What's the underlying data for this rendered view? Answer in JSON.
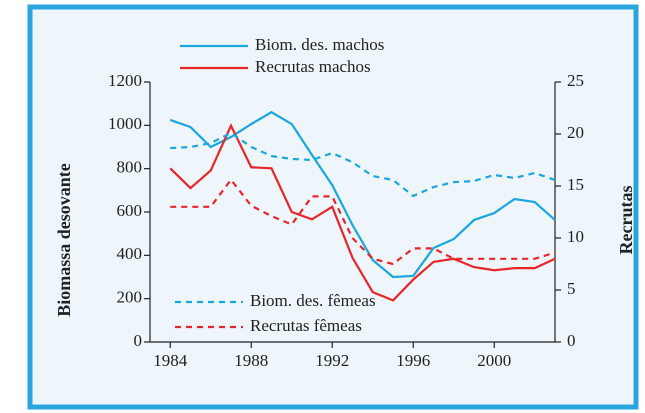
{
  "chart_data": {
    "type": "line",
    "y_label": "Biomassa desovante",
    "y2_label": "Recrutas",
    "x": [
      1984,
      1985,
      1986,
      1987,
      1988,
      1989,
      1990,
      1991,
      1992,
      1993,
      1994,
      1995,
      1996,
      1997,
      1998,
      1999,
      2000,
      2001,
      2002,
      2003
    ],
    "xlim": [
      1983,
      2003
    ],
    "xticks": [
      1984,
      1988,
      1992,
      1996,
      2000
    ],
    "ylim": [
      0,
      1200
    ],
    "yticks": [
      0,
      200,
      400,
      600,
      800,
      1000,
      1200
    ],
    "y2lim": [
      0,
      25
    ],
    "y2ticks": [
      0,
      5,
      10,
      15,
      20,
      25
    ],
    "series": [
      {
        "name": "Biom. des. machos",
        "color": "#1aa7e0",
        "dash": false,
        "axis": "y",
        "values": [
          1025,
          992,
          900,
          946,
          1006,
          1061,
          1006,
          863,
          724,
          540,
          378,
          300,
          305,
          434,
          475,
          563,
          595,
          660,
          646,
          563
        ]
      },
      {
        "name": "Recrutas machos",
        "color": "#e8262a",
        "dash": false,
        "axis": "y2",
        "values": [
          16.7,
          14.8,
          16.5,
          20.8,
          16.8,
          16.7,
          12.5,
          11.8,
          13.0,
          8.1,
          4.8,
          4.0,
          6.0,
          7.7,
          8.0,
          7.2,
          6.9,
          7.1,
          7.1,
          8.0
        ]
      },
      {
        "name": "Biom. des. fêmeas",
        "color": "#1aa7e0",
        "dash": true,
        "axis": "y",
        "values": [
          895,
          900,
          918,
          965,
          900,
          858,
          845,
          840,
          872,
          830,
          766,
          748,
          674,
          715,
          738,
          743,
          771,
          757,
          780,
          748
        ]
      },
      {
        "name": "Recrutas fêmeas",
        "color": "#e8262a",
        "dash": true,
        "axis": "y2",
        "values": [
          13.0,
          13.0,
          13.0,
          15.6,
          13.1,
          12.1,
          11.3,
          14.0,
          14.0,
          10.0,
          8.0,
          7.5,
          9.0,
          9.0,
          8.0,
          8.0,
          8.0,
          8.0,
          8.0,
          8.6
        ]
      }
    ]
  }
}
